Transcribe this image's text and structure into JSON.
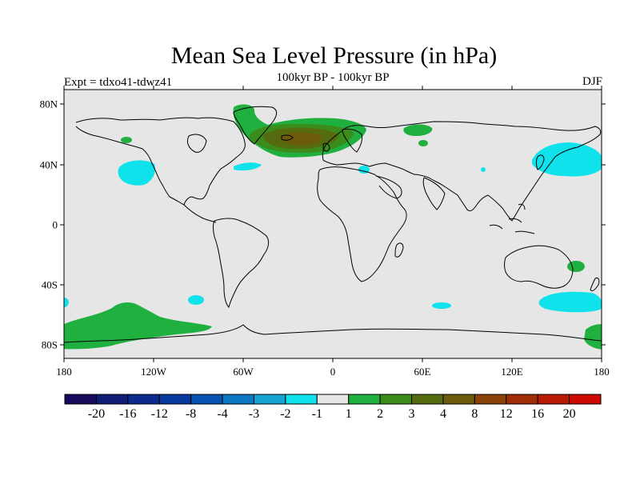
{
  "header": {
    "title": "Mean Sea Level Pressure (in hPa)",
    "subtitle": "100kyr BP - 100kyr BP",
    "left_label": "Expt = tdxo41-tdwz41",
    "right_label": "DJF"
  },
  "axes": {
    "lat_labels": [
      "80N",
      "40N",
      "0",
      "40S",
      "80S"
    ],
    "lon_labels": [
      "180",
      "120W",
      "60W",
      "0",
      "60E",
      "120E",
      "180"
    ]
  },
  "colorbar": {
    "colors": [
      "#1a0a5e",
      "#0f1c78",
      "#0b2a8c",
      "#07399e",
      "#0552b0",
      "#0c77c2",
      "#17a2d4",
      "#10e2ec",
      "#e6e6e6",
      "#20b040",
      "#3c8c1c",
      "#556b10",
      "#6e5a0c",
      "#8a4208",
      "#a02c06",
      "#b81a04",
      "#cc0a02"
    ],
    "labels": [
      "-20",
      "-16",
      "-12",
      "-8",
      "-4",
      "-3",
      "-2",
      "-1",
      "1",
      "2",
      "3",
      "4",
      "8",
      "12",
      "16",
      "20"
    ]
  },
  "map": {
    "background": "#e6e6e6",
    "coast_color": "#000000",
    "colors": {
      "cyan": "#10e2ec",
      "green": "#20b040",
      "darkgreen": "#3c8c1c",
      "olive": "#556b10",
      "brown": "#6e5a0c"
    }
  }
}
